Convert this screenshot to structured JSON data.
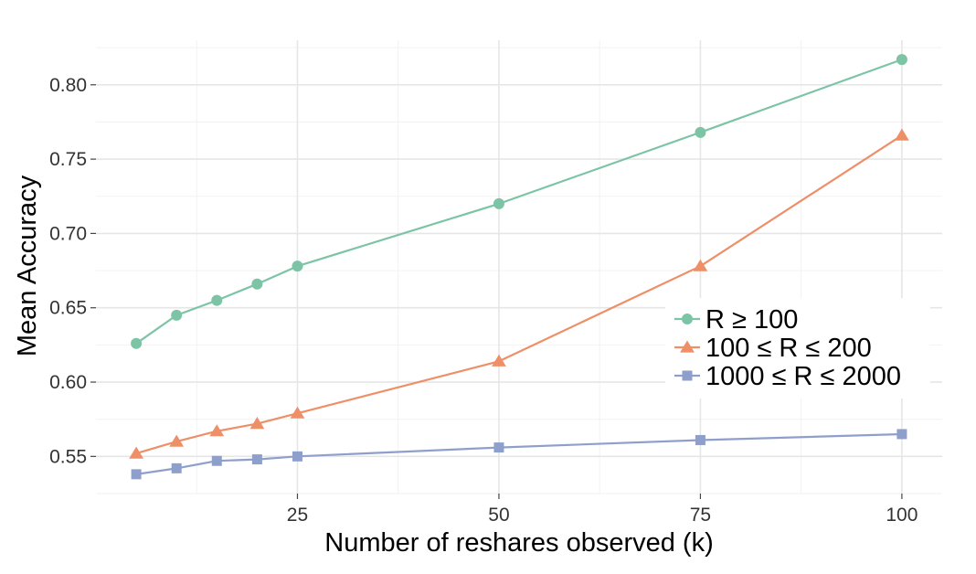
{
  "chart_data": {
    "type": "line",
    "xlabel": "Number of reshares observed (k)",
    "ylabel": "Mean Accuracy",
    "xlim": [
      0,
      105
    ],
    "ylim": [
      0.525,
      0.83
    ],
    "x_ticks": [
      25,
      50,
      75,
      100
    ],
    "x_tick_labels": [
      "25",
      "50",
      "75",
      "100"
    ],
    "y_ticks": [
      0.55,
      0.6,
      0.65,
      0.7,
      0.75,
      0.8
    ],
    "y_tick_labels": [
      "0.55",
      "0.60",
      "0.65",
      "0.70",
      "0.75",
      "0.80"
    ],
    "grid": true,
    "legend_position": "right",
    "x": [
      5,
      10,
      15,
      20,
      25,
      50,
      75,
      100
    ],
    "series": [
      {
        "name": "R ≥ 100",
        "marker": "circle",
        "color": "#7cc4a5",
        "values": [
          0.626,
          0.645,
          0.655,
          0.666,
          0.678,
          0.72,
          0.768,
          0.817
        ]
      },
      {
        "name": "100 ≤ R ≤ 200",
        "marker": "triangle",
        "color": "#ee8f68",
        "values": [
          0.552,
          0.56,
          0.567,
          0.572,
          0.579,
          0.614,
          0.678,
          0.766
        ]
      },
      {
        "name": "1000 ≤ R ≤ 2000",
        "marker": "square",
        "color": "#8f9fcc",
        "values": [
          0.538,
          0.542,
          0.547,
          0.548,
          0.55,
          0.556,
          0.561,
          0.565
        ]
      }
    ]
  }
}
